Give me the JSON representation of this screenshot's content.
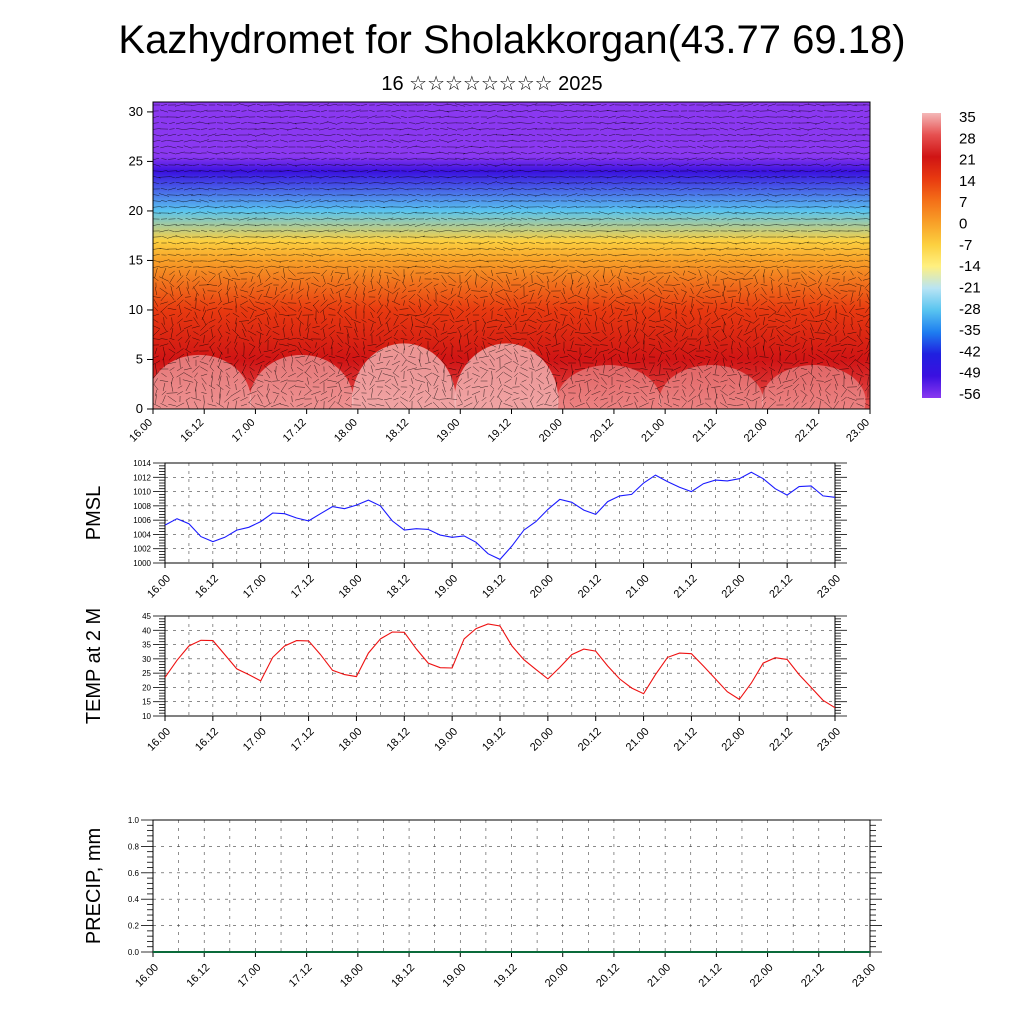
{
  "title": "Kazhydromet for Sholakkorgan(43.77 69.18)",
  "subtitle": "16 ☆☆☆☆☆☆☆☆ 2025",
  "chart_data": [
    {
      "type": "heatmap",
      "xlabel": "",
      "ylabel": "",
      "x_tick_labels": [
        "16.00",
        "16.12",
        "17.00",
        "17.12",
        "18.00",
        "18.12",
        "19.00",
        "19.12",
        "20.00",
        "20.12",
        "21.00",
        "21.12",
        "22.00",
        "22.12",
        "23.00"
      ],
      "y_ticks": [
        0,
        5,
        10,
        15,
        20,
        25,
        30
      ],
      "ylim": [
        0,
        31
      ],
      "colorbar_labels": [
        "35",
        "28",
        "21",
        "14",
        "7",
        "0",
        "-7",
        "-14",
        "-21",
        "-28",
        "-35",
        "-42",
        "-49",
        "-56"
      ],
      "colorbar_colors": [
        "#f4b8b8",
        "#e65050",
        "#d01414",
        "#e83a10",
        "#f47018",
        "#f8a028",
        "#fcd040",
        "#fff080",
        "#b8e4f4",
        "#58c4f0",
        "#1e7ef0",
        "#2020e0",
        "#3a10e0",
        "#8a38f0"
      ],
      "overlay": "wind vectors",
      "profile": [
        {
          "level": 0,
          "value": 30
        },
        {
          "level": 5,
          "value": 24
        },
        {
          "level": 10,
          "value": 14
        },
        {
          "level": 15,
          "value": 0
        },
        {
          "level": 17,
          "value": -10
        },
        {
          "level": 20,
          "value": -30
        },
        {
          "level": 24,
          "value": -48
        },
        {
          "level": 25.5,
          "value": -56
        },
        {
          "level": 31,
          "value": -62
        }
      ]
    },
    {
      "type": "line",
      "ylabel": "PMSL",
      "ylim": [
        1000,
        1014
      ],
      "y_ticks": [
        1000,
        1002,
        1004,
        1006,
        1008,
        1010,
        1012,
        1014
      ],
      "x_tick_labels": [
        "16.00",
        "16.12",
        "17.00",
        "17.12",
        "18.00",
        "18.12",
        "19.00",
        "19.12",
        "20.00",
        "20.12",
        "21.00",
        "21.12",
        "22.00",
        "22.12",
        "23.00"
      ],
      "series": [
        {
          "color": "#1a1aff",
          "values": [
            1005.3,
            1006.2,
            1005.5,
            1003.7,
            1003.0,
            1003.6,
            1004.6,
            1005.0,
            1005.8,
            1007.0,
            1006.9,
            1006.3,
            1005.9,
            1006.9,
            1007.9,
            1007.6,
            1008.1,
            1008.8,
            1008.0,
            1005.9,
            1004.6,
            1004.8,
            1004.7,
            1003.9,
            1003.6,
            1003.8,
            1002.9,
            1001.3,
            1000.5,
            1002.4,
            1004.6,
            1005.8,
            1007.5,
            1008.9,
            1008.5,
            1007.4,
            1006.8,
            1008.6,
            1009.4,
            1009.6,
            1011.2,
            1012.3,
            1011.4,
            1010.6,
            1010.0,
            1011.1,
            1011.6,
            1011.5,
            1011.8,
            1012.7,
            1011.8,
            1010.4,
            1009.5,
            1010.7,
            1010.8,
            1009.4,
            1009.2
          ]
        }
      ]
    },
    {
      "type": "line",
      "ylabel": "TEMP at 2 M",
      "ylim": [
        10,
        45
      ],
      "y_ticks": [
        10,
        15,
        20,
        25,
        30,
        35,
        40,
        45
      ],
      "x_tick_labels": [
        "16.00",
        "16.12",
        "17.00",
        "17.12",
        "18.00",
        "18.12",
        "19.00",
        "19.12",
        "20.00",
        "20.12",
        "21.00",
        "21.12",
        "22.00",
        "22.12",
        "23.00"
      ],
      "series": [
        {
          "color": "#ee1111",
          "values": [
            23.5,
            29.5,
            34.5,
            36.5,
            36.4,
            31.5,
            26.5,
            24.5,
            22.3,
            30.5,
            34.5,
            36.4,
            36.3,
            31.5,
            26.0,
            24.5,
            23.8,
            32.0,
            37.0,
            39.4,
            39.3,
            33.5,
            28.5,
            26.9,
            26.8,
            37.0,
            40.6,
            42.2,
            41.5,
            34.5,
            29.7,
            26.3,
            23.0,
            27.0,
            31.5,
            33.4,
            32.7,
            27.5,
            23.0,
            19.8,
            17.8,
            24.5,
            30.5,
            32.0,
            31.8,
            27.5,
            23.0,
            18.5,
            15.8,
            21.5,
            28.5,
            30.4,
            29.8,
            24.5,
            20.0,
            15.5,
            12.9
          ]
        }
      ]
    },
    {
      "type": "bar",
      "ylabel": "PRECIP, mm",
      "ylim": [
        0,
        1
      ],
      "y_ticks": [
        "0.0",
        "0.2",
        "0.4",
        "0.6",
        "0.8",
        "1.0"
      ],
      "x_tick_labels": [
        "16.00",
        "16.12",
        "17.00",
        "17.12",
        "18.00",
        "18.12",
        "19.00",
        "19.12",
        "20.00",
        "20.12",
        "21.00",
        "21.12",
        "22.00",
        "22.12",
        "23.00"
      ],
      "values": []
    }
  ]
}
